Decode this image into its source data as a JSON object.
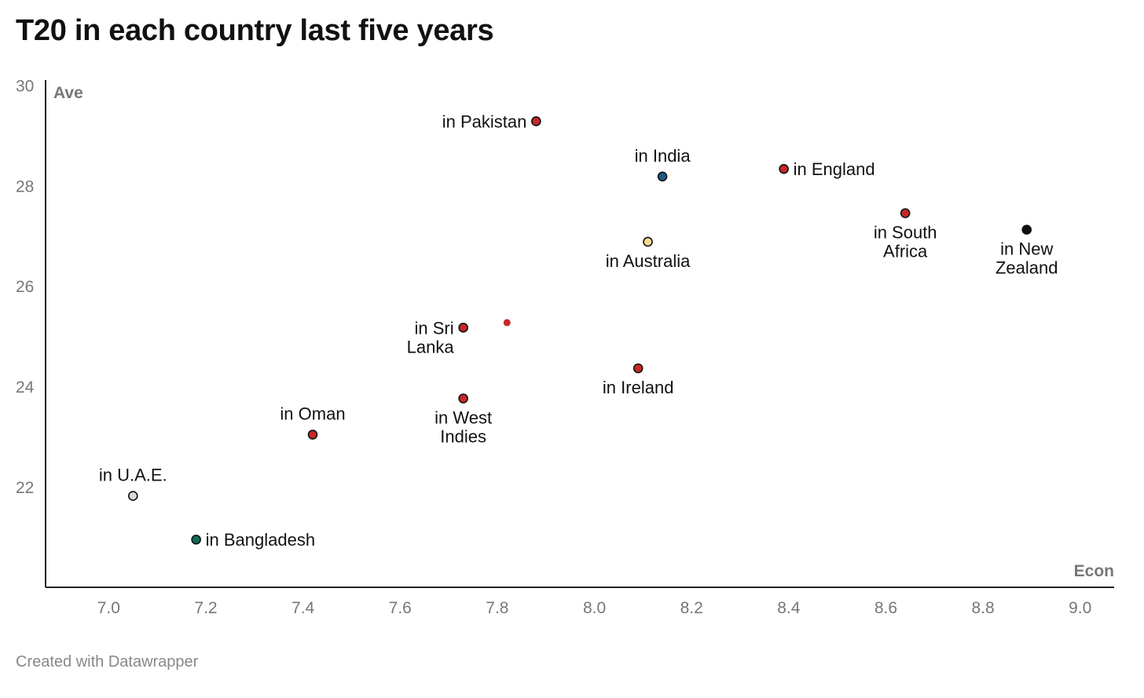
{
  "chart_data": {
    "type": "scatter",
    "title": "T20 in each country last five years",
    "xlabel": "Econ",
    "ylabel": "Ave",
    "xlim": [
      6.87,
      9.07
    ],
    "ylim": [
      20.0,
      30.1
    ],
    "x_ticks": [
      "7.0",
      "7.2",
      "7.4",
      "7.6",
      "7.8",
      "8.0",
      "8.2",
      "8.4",
      "8.6",
      "8.8",
      "9.0"
    ],
    "y_ticks": [
      "22",
      "24",
      "26",
      "28",
      "30"
    ],
    "points": [
      {
        "label": "in Pakistan",
        "lines": [
          "in Pakistan"
        ],
        "x": 7.88,
        "y": 29.28,
        "color": "#c62828",
        "size": "normal",
        "label_pos": "left"
      },
      {
        "label": "in India",
        "lines": [
          "in India"
        ],
        "x": 8.14,
        "y": 28.18,
        "color": "#1f5a85",
        "size": "normal",
        "label_pos": "above"
      },
      {
        "label": "in England",
        "lines": [
          "in England"
        ],
        "x": 8.39,
        "y": 28.33,
        "color": "#c62828",
        "size": "normal",
        "label_pos": "right"
      },
      {
        "label": "in South Africa",
        "lines": [
          "in South",
          "Africa"
        ],
        "x": 8.64,
        "y": 27.45,
        "color": "#c62828",
        "size": "normal",
        "label_pos": "below"
      },
      {
        "label": "in New Zealand",
        "lines": [
          "in New",
          "Zealand"
        ],
        "x": 8.89,
        "y": 27.12,
        "color": "#111111",
        "size": "normal",
        "label_pos": "below"
      },
      {
        "label": "in Australia",
        "lines": [
          "in Australia"
        ],
        "x": 8.11,
        "y": 26.88,
        "color": "#f5dc91",
        "size": "normal",
        "label_pos": "below"
      },
      {
        "label": "in Sri Lanka",
        "lines": [
          "in Sri",
          "Lanka"
        ],
        "x": 7.73,
        "y": 25.17,
        "color": "#c62828",
        "size": "normal",
        "label_pos": "left"
      },
      {
        "label": "",
        "lines": [],
        "x": 7.82,
        "y": 25.27,
        "color": "#c62828",
        "size": "small",
        "label_pos": "none"
      },
      {
        "label": "in Ireland",
        "lines": [
          "in Ireland"
        ],
        "x": 8.09,
        "y": 24.36,
        "color": "#c62828",
        "size": "normal",
        "label_pos": "below"
      },
      {
        "label": "in West Indies",
        "lines": [
          "in West",
          "Indies"
        ],
        "x": 7.73,
        "y": 23.76,
        "color": "#c62828",
        "size": "normal",
        "label_pos": "below"
      },
      {
        "label": "in Oman",
        "lines": [
          "in Oman"
        ],
        "x": 7.42,
        "y": 23.04,
        "color": "#c62828",
        "size": "normal",
        "label_pos": "above"
      },
      {
        "label": "in U.A.E.",
        "lines": [
          "in U.A.E."
        ],
        "x": 7.05,
        "y": 21.82,
        "color": "#d9d9d9",
        "size": "normal",
        "label_pos": "above"
      },
      {
        "label": "in Bangladesh",
        "lines": [
          "in Bangladesh"
        ],
        "x": 7.18,
        "y": 20.95,
        "color": "#0f6b57",
        "size": "normal",
        "label_pos": "right"
      }
    ]
  },
  "footer": {
    "credit": "Created with Datawrapper"
  }
}
